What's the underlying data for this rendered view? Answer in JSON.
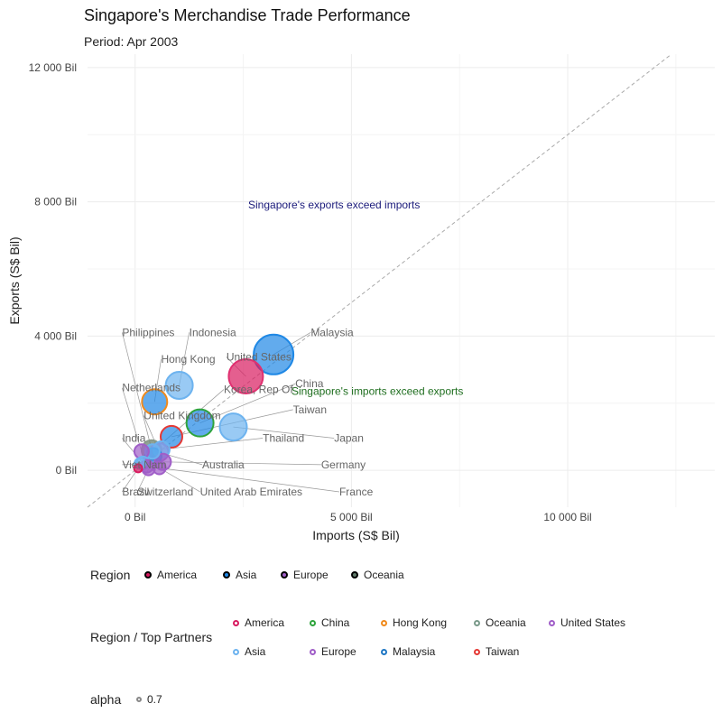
{
  "chart_data": {
    "type": "scatter",
    "title": "Singapore's Merchandise Trade Performance",
    "subtitle": "Period: Apr 2003",
    "xlabel": "Imports (S$ Bil)",
    "ylabel": "Exports (S$ Bil)",
    "xlim": [
      -1100,
      13400
    ],
    "ylim": [
      -1100,
      12400
    ],
    "x_ticks": [
      {
        "value": 0,
        "label": "0 Bil"
      },
      {
        "value": 5000,
        "label": "5 000 Bil"
      },
      {
        "value": 10000,
        "label": "10 000 Bil"
      }
    ],
    "y_ticks": [
      {
        "value": 0,
        "label": "0 Bil"
      },
      {
        "value": 4000,
        "label": "4 000 Bil"
      },
      {
        "value": 8000,
        "label": "8 000 Bil"
      },
      {
        "value": 12000,
        "label": "12 000 Bil"
      }
    ],
    "grid": true,
    "reference_line": "y = x (dashed)",
    "annotations": [
      {
        "text": "Singapore's exports exceed imports",
        "x": 4600,
        "y": 7800,
        "color": "#1a1a7a"
      },
      {
        "text": "Singapore's imports exceed exports",
        "x": 5600,
        "y": 2250,
        "color": "#1f6e1f"
      }
    ],
    "points": [
      {
        "label": "Malaysia",
        "x": 3200,
        "y": 3450,
        "size": 44,
        "fill": "#1f88e5",
        "stroke": "#1f88e5",
        "label_x": 4060,
        "label_y": 4000
      },
      {
        "label": "United States",
        "x": 2560,
        "y": 2800,
        "size": 38,
        "fill": "#d81b60",
        "stroke": "#e03070",
        "label_x": 2110,
        "label_y": 3270
      },
      {
        "label": "Indonesia",
        "x": 1020,
        "y": 2530,
        "size": 30,
        "fill": "#6db3ef",
        "stroke": "#6db3ef",
        "label_x": 1250,
        "label_y": 4000
      },
      {
        "label": "Hong Kong",
        "x": 450,
        "y": 2040,
        "size": 28,
        "fill": "#1f88e5",
        "stroke": "#f08a1c",
        "label_x": 600,
        "label_y": 3200
      },
      {
        "label": "China",
        "x": 1500,
        "y": 1410,
        "size": 30,
        "fill": "#1f88e5",
        "stroke": "#2ea43c",
        "label_x": 3700,
        "label_y": 2470
      },
      {
        "label": "Japan",
        "x": 2270,
        "y": 1290,
        "size": 30,
        "fill": "#6db3ef",
        "stroke": "#6db3ef",
        "label_x": 4600,
        "label_y": 850
      },
      {
        "label": "Taiwan",
        "x": 840,
        "y": 1000,
        "size": 24,
        "fill": "#1f88e5",
        "stroke": "#e53935",
        "label_x": 3650,
        "label_y": 1700
      },
      {
        "label": "Thailand",
        "x": 610,
        "y": 620,
        "size": 18,
        "fill": "#6db3ef",
        "stroke": "#6db3ef",
        "label_x": 2950,
        "label_y": 850
      },
      {
        "label": "Korea, Rep Of",
        "x": 400,
        "y": 560,
        "size": 16,
        "fill": "#6db3ef",
        "stroke": "#6db3ef",
        "label_x": 2050,
        "label_y": 2300
      },
      {
        "label": "United Kingdom",
        "x": 560,
        "y": 540,
        "size": 20,
        "fill": "#a05ec8",
        "stroke": "#a05ec8",
        "label_x": 200,
        "label_y": 1520
      },
      {
        "label": "Netherlands",
        "x": 150,
        "y": 560,
        "size": 16,
        "fill": "#a05ec8",
        "stroke": "#a05ec8",
        "label_x": -300,
        "label_y": 2350
      },
      {
        "label": "Philippines",
        "x": 420,
        "y": 420,
        "size": 18,
        "fill": "#1f88e5",
        "stroke": "#1f88e5",
        "label_x": -300,
        "label_y": 4000
      },
      {
        "label": "Australia",
        "x": 380,
        "y": 600,
        "size": 22,
        "fill": "#5f7a6a",
        "stroke": "#8a9a8a",
        "label_x": 1550,
        "label_y": 60
      },
      {
        "label": "Germany",
        "x": 640,
        "y": 250,
        "size": 18,
        "fill": "#a05ec8",
        "stroke": "#a05ec8",
        "label_x": 4300,
        "label_y": 60
      },
      {
        "label": "India",
        "x": 180,
        "y": 220,
        "size": 14,
        "fill": "#6db3ef",
        "stroke": "#6db3ef",
        "label_x": -300,
        "label_y": 850
      },
      {
        "label": "France",
        "x": 270,
        "y": 120,
        "size": 14,
        "fill": "#a05ec8",
        "stroke": "#a05ec8",
        "label_x": 4720,
        "label_y": -750
      },
      {
        "label": "Switzerland",
        "x": 310,
        "y": 40,
        "size": 14,
        "fill": "#a05ec8",
        "stroke": "#a05ec8",
        "label_x": 50,
        "label_y": -750
      },
      {
        "label": "Viet Nam",
        "x": 110,
        "y": 200,
        "size": 12,
        "fill": "#6db3ef",
        "stroke": "#6db3ef",
        "label_x": -300,
        "label_y": 60
      },
      {
        "label": "United Arab Emirates",
        "x": 560,
        "y": 70,
        "size": 14,
        "fill": "#a05ec8",
        "stroke": "#a05ec8",
        "label_x": 1500,
        "label_y": -750
      },
      {
        "label": "Brazil",
        "x": 70,
        "y": 60,
        "size": 9,
        "fill": "#d81b60",
        "stroke": "#d81b60",
        "label_x": -300,
        "label_y": -750
      }
    ]
  },
  "legend": {
    "region_title": "Region",
    "region_items": [
      {
        "label": "America",
        "color": "#d81b60"
      },
      {
        "label": "Asia",
        "color": "#1f88e5"
      },
      {
        "label": "Europe",
        "color": "#a05ec8"
      },
      {
        "label": "Oceania",
        "color": "#5f7a6a"
      }
    ],
    "partners_title": "Region / Top Partners",
    "partners_items": [
      {
        "label": "America",
        "color": "#d81b60"
      },
      {
        "label": "China",
        "color": "#2ea43c"
      },
      {
        "label": "Hong Kong",
        "color": "#f08a1c"
      },
      {
        "label": "Oceania",
        "color": "#7a9a8a"
      },
      {
        "label": "United States",
        "color": "#a05ec8"
      },
      {
        "label": "Asia",
        "color": "#6db3ef"
      },
      {
        "label": "Europe",
        "color": "#a05ec8"
      },
      {
        "label": "Malaysia",
        "color": "#1f77c4"
      },
      {
        "label": "Taiwan",
        "color": "#e53935"
      }
    ],
    "alpha_title": "alpha",
    "alpha_label": "0.7"
  }
}
